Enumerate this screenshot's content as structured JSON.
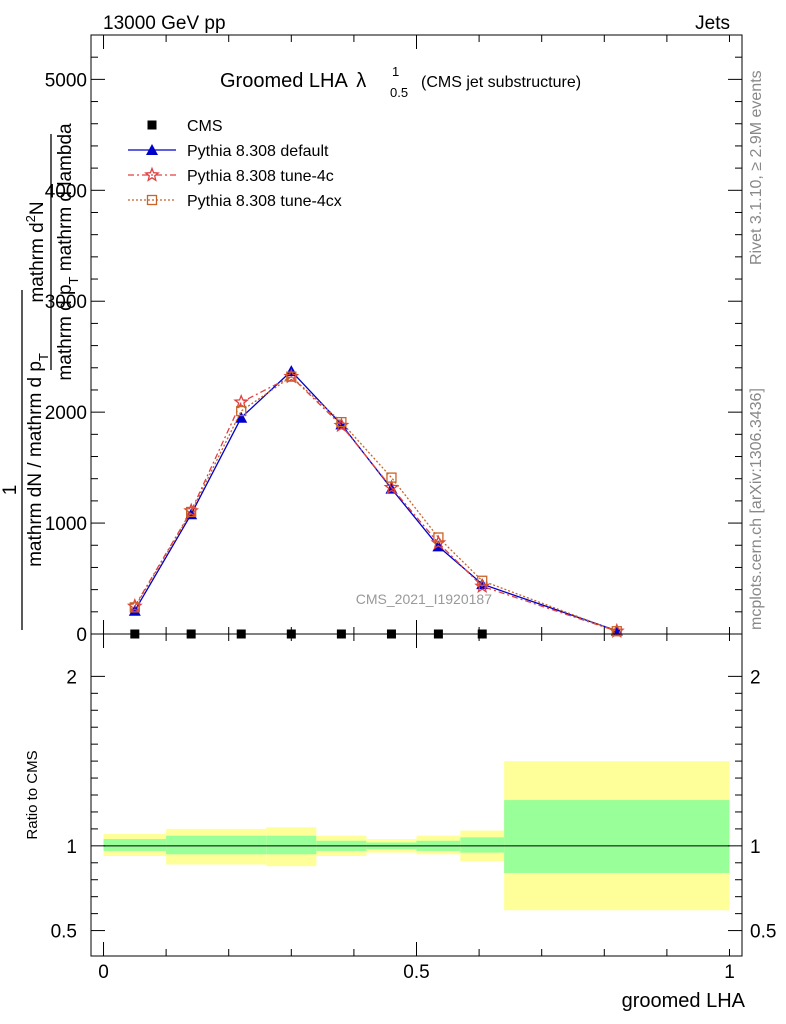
{
  "header": {
    "left": "13000 GeV pp",
    "right": "Jets",
    "side_rivet": "Rivet 3.1.10, ≥ 2.9M events",
    "side_mcplots": "mcplots.cern.ch [arXiv:1306.3436]"
  },
  "chart_data": [
    {
      "type": "line",
      "title_main": "Groomed LHA",
      "title_lambda": "λ",
      "title_sup": "1",
      "title_sub": "0.5",
      "title_extra": "(CMS jet substructure)",
      "ylabel": "1 / mathrm dN / mathrm d p_T  mathrm d^2N / mathrm d p_T mathrm d lambda",
      "ylabel_parts": {
        "numerator_top": "mathrm d",
        "numerator_sup": "2",
        "numerator_rest": "N",
        "denominator_top": "mathrm d p",
        "denominator_top_sub": "T",
        "denominator_top_rest": " mathrm d lambda",
        "one": "1",
        "bottom_main": "mathrm dN / mathrm d p",
        "bottom_sub": "T"
      },
      "watermark": "CMS_2021_I1920187",
      "xlim": [
        -0.02,
        1.02
      ],
      "ylim": [
        0,
        5400
      ],
      "yticks": [
        0,
        1000,
        2000,
        3000,
        4000,
        5000
      ],
      "ytick_labels": [
        "0",
        "1000",
        "2000",
        "3000",
        "4000",
        "5000"
      ],
      "legend_position": "top-left",
      "series": [
        {
          "name": "CMS",
          "color": "#000000",
          "marker": "square",
          "x": [
            0.05,
            0.14,
            0.22,
            0.3,
            0.38,
            0.46,
            0.535,
            0.605
          ],
          "y": [
            0,
            0,
            0,
            0,
            0,
            0,
            0,
            0
          ]
        },
        {
          "name": "Pythia 8.308 default",
          "color": "#0000cc",
          "marker": "triangle",
          "x": [
            0.05,
            0.14,
            0.22,
            0.3,
            0.38,
            0.46,
            0.535,
            0.605,
            0.82
          ],
          "y": [
            210,
            1080,
            1950,
            2370,
            1890,
            1310,
            790,
            450,
            30
          ]
        },
        {
          "name": "Pythia 8.308 tune-4c",
          "color": "#e04040",
          "marker": "star",
          "x": [
            0.05,
            0.14,
            0.22,
            0.3,
            0.38,
            0.46,
            0.535,
            0.605,
            0.82
          ],
          "y": [
            250,
            1110,
            2090,
            2320,
            1880,
            1320,
            820,
            430,
            25
          ]
        },
        {
          "name": "Pythia 8.308 tune-4cx",
          "color": "#c86428",
          "marker": "open-square",
          "x": [
            0.05,
            0.14,
            0.22,
            0.3,
            0.38,
            0.46,
            0.535,
            0.605,
            0.82
          ],
          "y": [
            240,
            1100,
            2010,
            2320,
            1910,
            1410,
            870,
            480,
            25
          ]
        }
      ]
    },
    {
      "type": "area",
      "ylabel": "Ratio to CMS",
      "xlabel": "groomed LHA",
      "xlim": [
        -0.02,
        1.02
      ],
      "ylim": [
        0.35,
        2.25
      ],
      "yticks": [
        0.5,
        1,
        2
      ],
      "ytick_labels": [
        "0.5",
        "1",
        "2"
      ],
      "xticks": [
        0,
        0.5,
        1
      ],
      "xtick_labels": [
        "0",
        "0.5",
        "1"
      ],
      "bins": [
        {
          "x0": 0.0,
          "x1": 0.1,
          "y_lo": 0.94,
          "y_hi": 1.07,
          "g_lo": 0.97,
          "g_hi": 1.04
        },
        {
          "x0": 0.1,
          "x1": 0.26,
          "y_lo": 0.89,
          "y_hi": 1.1,
          "g_lo": 0.95,
          "g_hi": 1.06
        },
        {
          "x0": 0.26,
          "x1": 0.34,
          "y_lo": 0.88,
          "y_hi": 1.11,
          "g_lo": 0.95,
          "g_hi": 1.06
        },
        {
          "x0": 0.34,
          "x1": 0.42,
          "y_lo": 0.94,
          "y_hi": 1.06,
          "g_lo": 0.97,
          "g_hi": 1.03
        },
        {
          "x0": 0.42,
          "x1": 0.5,
          "y_lo": 0.96,
          "y_hi": 1.04,
          "g_lo": 0.98,
          "g_hi": 1.02
        },
        {
          "x0": 0.5,
          "x1": 0.57,
          "y_lo": 0.95,
          "y_hi": 1.06,
          "g_lo": 0.97,
          "g_hi": 1.03
        },
        {
          "x0": 0.57,
          "x1": 0.64,
          "y_lo": 0.91,
          "y_hi": 1.09,
          "g_lo": 0.96,
          "g_hi": 1.05
        },
        {
          "x0": 0.64,
          "x1": 1.0,
          "y_lo": 0.62,
          "y_hi": 1.5,
          "g_lo": 0.84,
          "g_hi": 1.27
        }
      ],
      "band_colors": {
        "outer": "#ffff99",
        "inner": "#99ff99"
      },
      "reference_line": 1
    }
  ]
}
